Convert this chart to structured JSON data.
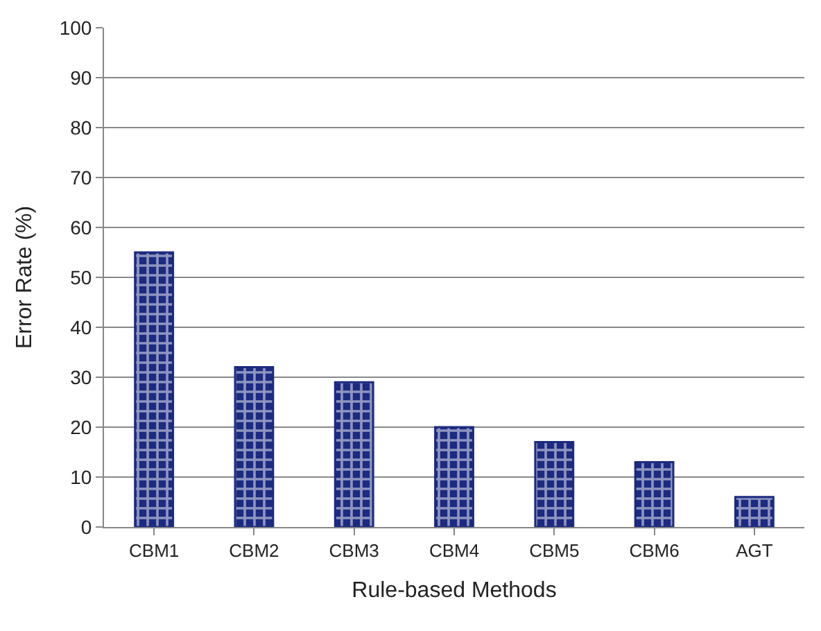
{
  "chart_data": {
    "type": "bar",
    "xlabel": "Rule-based Methods",
    "ylabel": "Error Rate (%)",
    "categories": [
      "CBM1",
      "CBM2",
      "CBM3",
      "CBM4",
      "CBM5",
      "CBM6",
      "AGT"
    ],
    "values": [
      55,
      32,
      29,
      20,
      17,
      13,
      6
    ],
    "color": "#1c2a80",
    "ylim": [
      0,
      100
    ],
    "yticks": [
      0,
      10,
      20,
      30,
      40,
      50,
      60,
      70,
      80,
      90,
      100
    ],
    "grid": "y"
  }
}
